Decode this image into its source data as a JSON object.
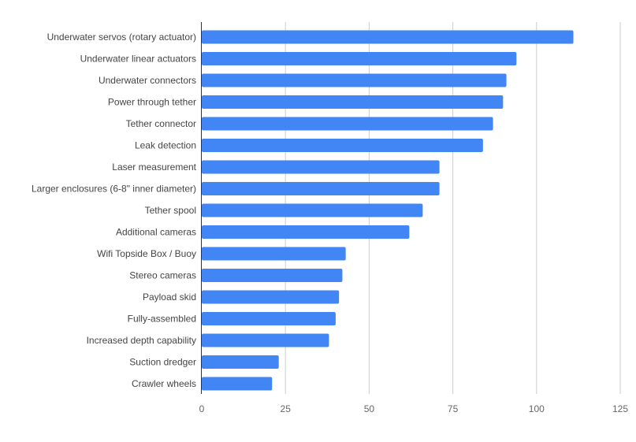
{
  "chart_data": {
    "type": "bar",
    "orientation": "horizontal",
    "categories": [
      "Underwater servos (rotary actuator)",
      "Underwater linear actuators",
      "Underwater connectors",
      "Power through tether",
      "Tether connector",
      "Leak detection",
      "Laser measurement",
      "Larger enclosures (6-8\" inner diameter)",
      "Tether spool",
      "Additional cameras",
      "Wifi Topside Box / Buoy",
      "Stereo cameras",
      "Payload skid",
      "Fully-assembled",
      "Increased depth capability",
      "Suction dredger",
      "Crawler wheels"
    ],
    "values": [
      111,
      94,
      91,
      90,
      87,
      84,
      71,
      71,
      66,
      62,
      43,
      42,
      41,
      40,
      38,
      23,
      21
    ],
    "title": "",
    "xlabel": "",
    "ylabel": "",
    "xlim": [
      0,
      125
    ],
    "xticks": [
      "0",
      "25",
      "50",
      "75",
      "100",
      "125"
    ],
    "grid": true,
    "legend": "none",
    "bar_color": "#4285f4"
  }
}
